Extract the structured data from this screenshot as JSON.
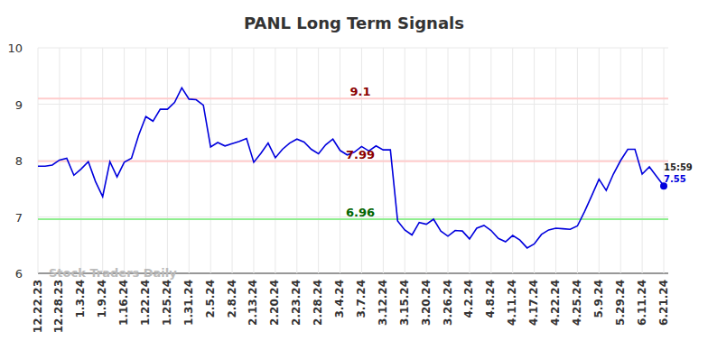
{
  "chart_data": {
    "type": "line",
    "title": "PANL Long Term Signals",
    "watermark": "Stock Traders Daily",
    "categories": [
      "12.22.23",
      null,
      null,
      "12.28.23",
      null,
      null,
      "1.3.24",
      null,
      null,
      "1.9.24",
      null,
      null,
      "1.16.24",
      null,
      null,
      "1.22.24",
      null,
      null,
      "1.25.24",
      null,
      null,
      "1.31.24",
      null,
      null,
      "2.5.24",
      null,
      null,
      "2.8.24",
      null,
      null,
      "2.13.24",
      null,
      null,
      "2.20.24",
      null,
      null,
      "2.23.24",
      null,
      null,
      "2.28.24",
      null,
      null,
      "3.4.24",
      null,
      null,
      "3.7.24",
      null,
      null,
      "3.12.24",
      null,
      null,
      "3.15.24",
      null,
      null,
      "3.20.24",
      null,
      null,
      "3.26.24",
      null,
      null,
      "4.2.24",
      null,
      null,
      "4.8.24",
      null,
      null,
      "4.11.24",
      null,
      null,
      "4.17.24",
      null,
      null,
      "4.22.24",
      null,
      null,
      "4.25.24",
      null,
      null,
      "5.9.24",
      null,
      null,
      "5.29.24",
      null,
      null,
      "6.11.24",
      null,
      null,
      "6.21.24"
    ],
    "series": [
      {
        "name": "PANL",
        "color": "#0000dd",
        "values": [
          7.9,
          7.9,
          7.92,
          8.01,
          8.04,
          7.74,
          7.85,
          7.98,
          7.63,
          7.36,
          7.98,
          7.71,
          7.97,
          8.04,
          8.45,
          8.78,
          8.7,
          8.91,
          8.91,
          9.03,
          9.29,
          9.09,
          9.08,
          8.98,
          8.24,
          8.32,
          8.26,
          8.3,
          8.34,
          8.39,
          7.97,
          8.13,
          8.31,
          8.05,
          8.2,
          8.31,
          8.38,
          8.33,
          8.2,
          8.12,
          8.28,
          8.38,
          8.18,
          8.1,
          8.15,
          8.25,
          8.17,
          8.26,
          8.19,
          8.19,
          6.93,
          6.77,
          6.68,
          6.9,
          6.87,
          6.96,
          6.75,
          6.66,
          6.76,
          6.75,
          6.61,
          6.8,
          6.85,
          6.76,
          6.62,
          6.56,
          6.67,
          6.59,
          6.45,
          6.52,
          6.69,
          6.77,
          6.8,
          6.79,
          6.78,
          6.84,
          7.1,
          7.38,
          7.67,
          7.47,
          7.76,
          8.0,
          8.2,
          8.2,
          7.76,
          7.89,
          7.72,
          7.55
        ]
      }
    ],
    "reference_lines": [
      {
        "value": 9.1,
        "color": "#ffcccc",
        "label_color": "#8b0000"
      },
      {
        "value": 7.99,
        "color": "#ffcccc",
        "label_color": "#8b0000"
      },
      {
        "value": 6.96,
        "color": "#90ee90",
        "label_color": "#006400"
      }
    ],
    "last_time": "15:59",
    "ylim": [
      6,
      10
    ],
    "yticks": [
      6,
      7,
      8,
      9,
      10
    ],
    "grid": true
  }
}
